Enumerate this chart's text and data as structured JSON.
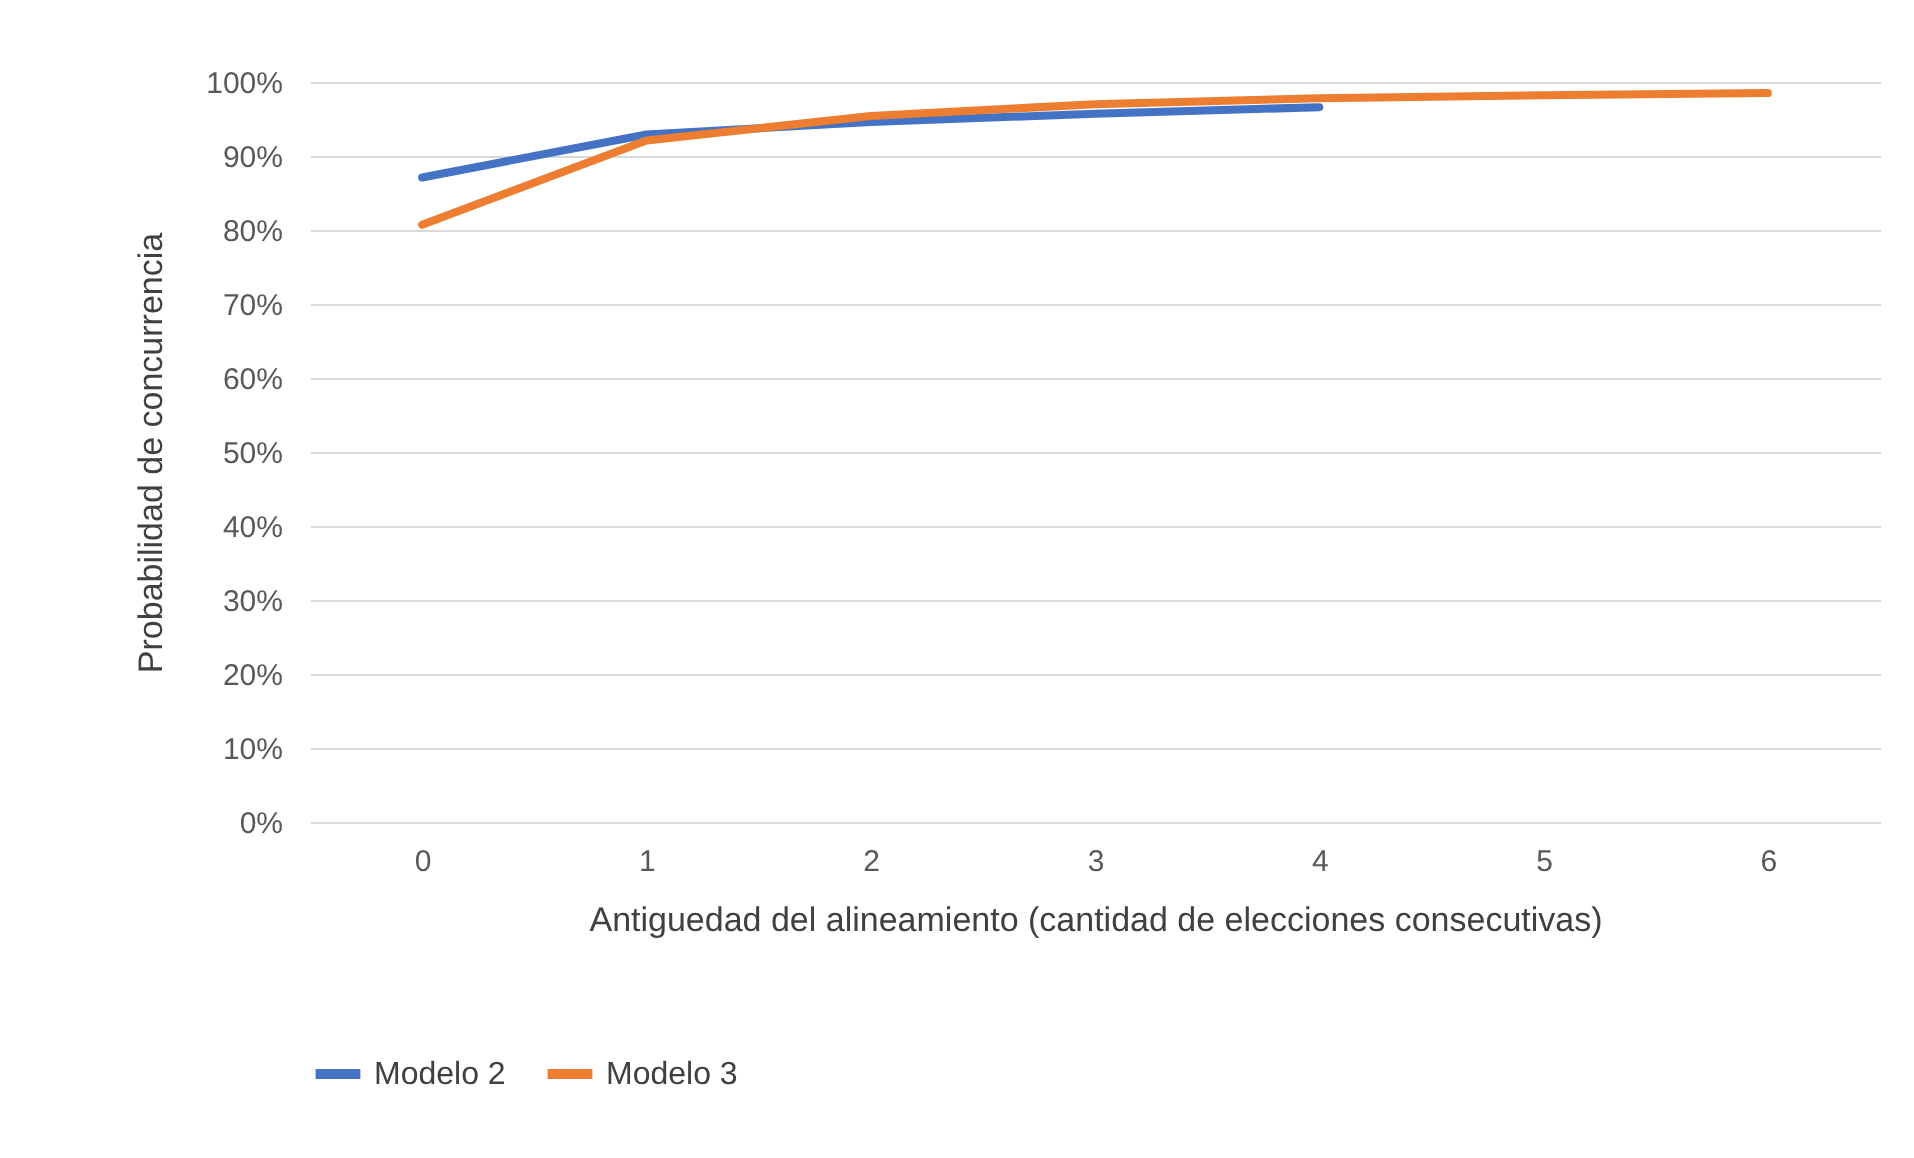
{
  "chart_data": {
    "type": "line",
    "xlabel": "Antiguedad del alineamiento (cantidad de elecciones consecutivas)",
    "ylabel": "Probabilidad de concurrencia",
    "categories": [
      "0",
      "1",
      "2",
      "3",
      "4",
      "5",
      "6"
    ],
    "series": [
      {
        "name": "Modelo 2",
        "color": "#4472c4",
        "values": [
          87.1,
          92.9,
          94.6,
          95.7,
          96.6,
          null,
          null
        ]
      },
      {
        "name": "Modelo 3",
        "color": "#ed7d31",
        "values": [
          80.7,
          92.1,
          95.4,
          97.0,
          97.8,
          98.2,
          98.5
        ]
      }
    ],
    "ylim": [
      0,
      100
    ],
    "yticks": [
      {
        "value": 0,
        "label": "0%"
      },
      {
        "value": 10,
        "label": "10%"
      },
      {
        "value": 20,
        "label": "20%"
      },
      {
        "value": 30,
        "label": "30%"
      },
      {
        "value": 40,
        "label": "40%"
      },
      {
        "value": 50,
        "label": "50%"
      },
      {
        "value": 60,
        "label": "60%"
      },
      {
        "value": 70,
        "label": "70%"
      },
      {
        "value": 80,
        "label": "80%"
      },
      {
        "value": 90,
        "label": "90%"
      },
      {
        "value": 100,
        "label": "100%"
      }
    ],
    "grid": "y",
    "legend": "bottom",
    "marker": "none",
    "line_style": "solid"
  }
}
